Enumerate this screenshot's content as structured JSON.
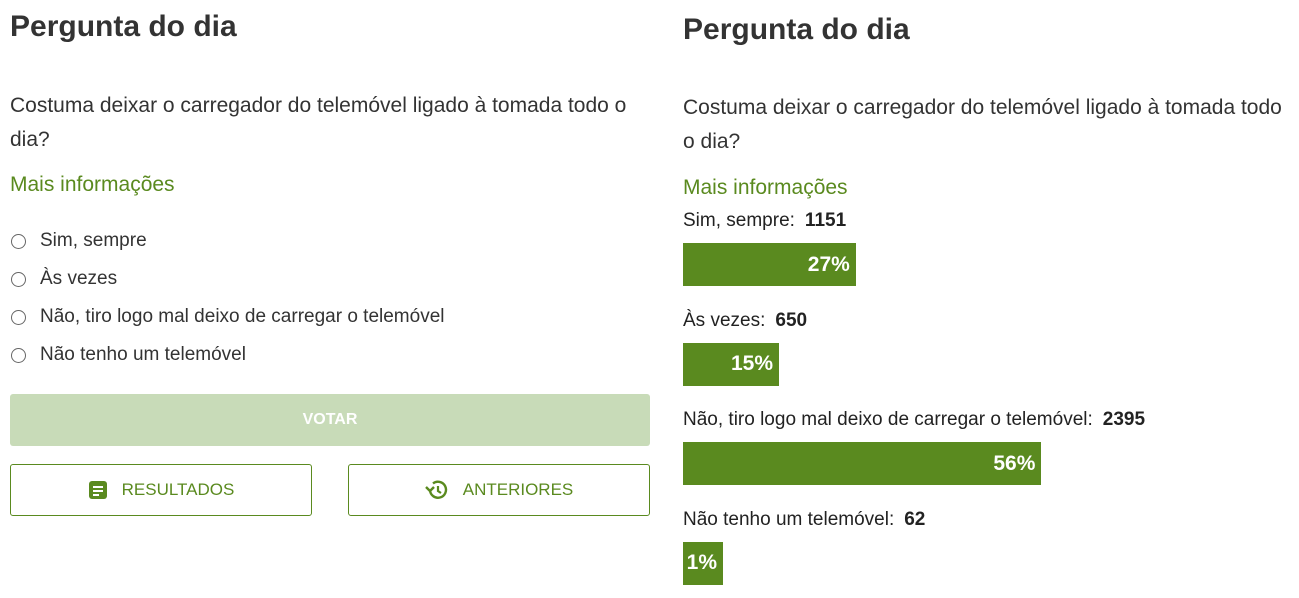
{
  "poll_form": {
    "title": "Pergunta do dia",
    "question": "Costuma deixar o carregador do telemóvel ligado à tomada todo o dia?",
    "more_info": "Mais informações",
    "options": [
      "Sim, sempre",
      "Às vezes",
      "Não, tiro logo mal deixo de carregar o telemóvel",
      "Não tenho um telemóvel"
    ],
    "vote_button": "VOTAR",
    "results_button": "RESULTADOS",
    "previous_button": "ANTERIORES"
  },
  "poll_results": {
    "title": "Pergunta do dia",
    "question": "Costuma deixar o carregador do telemóvel ligado à tomada todo o dia?",
    "more_info": "Mais informações",
    "options": [
      "Sim, sempre:",
      "Às vezes:",
      "Não, tiro logo mal deixo de carregar o telemóvel:",
      "Não tenho um telemóvel:"
    ],
    "counts": [
      1151,
      650,
      2395,
      62
    ],
    "percents": [
      27,
      15,
      56,
      1
    ],
    "percent_labels": [
      "27%",
      "15%",
      "56%",
      "1%"
    ],
    "bar_color": "#5a8a1f"
  }
}
